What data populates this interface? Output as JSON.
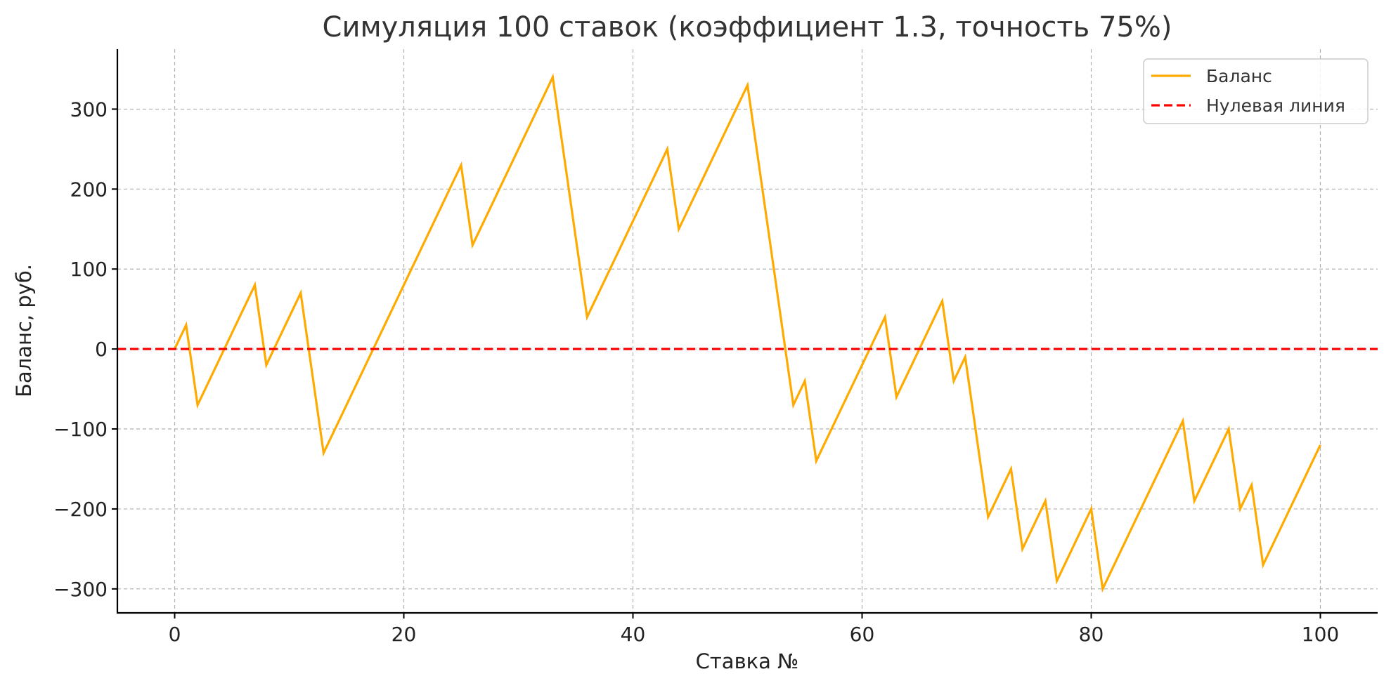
{
  "chart_data": {
    "type": "line",
    "title": "Симуляция 100 ставок (коэффициент 1.3, точность 75%)",
    "xlabel": "Ставка №",
    "ylabel": "Баланс, руб.",
    "xlim": [
      -5,
      105
    ],
    "ylim": [
      -330,
      375
    ],
    "xticks": [
      0,
      20,
      40,
      60,
      80,
      100
    ],
    "xtick_labels": [
      "0",
      "20",
      "40",
      "60",
      "80",
      "100"
    ],
    "yticks": [
      -300,
      -200,
      -100,
      0,
      100,
      200,
      300
    ],
    "ytick_labels": [
      "−300",
      "−200",
      "−100",
      "0",
      "100",
      "200",
      "300"
    ],
    "grid": true,
    "legend_position": "top-right",
    "series": [
      {
        "name": "Баланс",
        "color": "#FFAA00",
        "style": "solid",
        "x": [
          0,
          1,
          2,
          7,
          8,
          11,
          13,
          25,
          26,
          33,
          36,
          43,
          44,
          50,
          54,
          55,
          56,
          62,
          63,
          67,
          68,
          69,
          71,
          73,
          74,
          76,
          77,
          80,
          81,
          88,
          89,
          92,
          93,
          94,
          95,
          100
        ],
        "y": [
          0,
          30,
          -70,
          80,
          -20,
          70,
          -130,
          230,
          130,
          340,
          40,
          250,
          150,
          330,
          -70,
          -40,
          -140,
          40,
          -60,
          60,
          -40,
          -10,
          -210,
          -150,
          -250,
          -190,
          -290,
          -200,
          -300,
          -90,
          -190,
          -100,
          -200,
          -170,
          -270,
          -120
        ]
      },
      {
        "name": "Нулевая линия",
        "color": "#FF0000",
        "style": "dashed",
        "x": [
          -5,
          105
        ],
        "y": [
          0,
          0
        ]
      }
    ]
  }
}
